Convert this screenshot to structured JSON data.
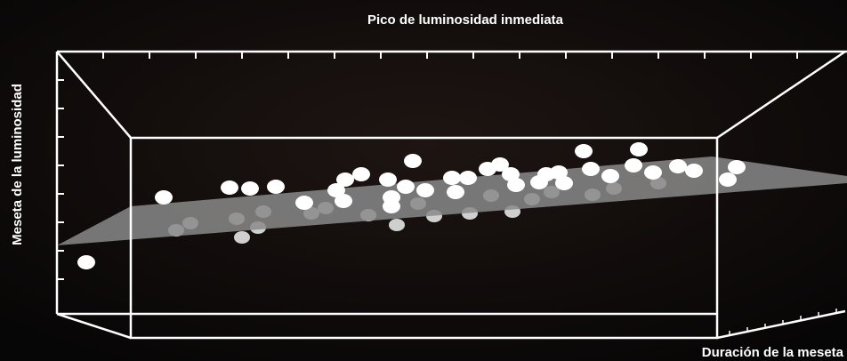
{
  "chart_data": {
    "type": "scatter3d",
    "x_label": "Pico de luminosidad inmediata",
    "y_label": "Meseta de la luminosidad",
    "z_label": "Duración de la meseta"
  }
}
